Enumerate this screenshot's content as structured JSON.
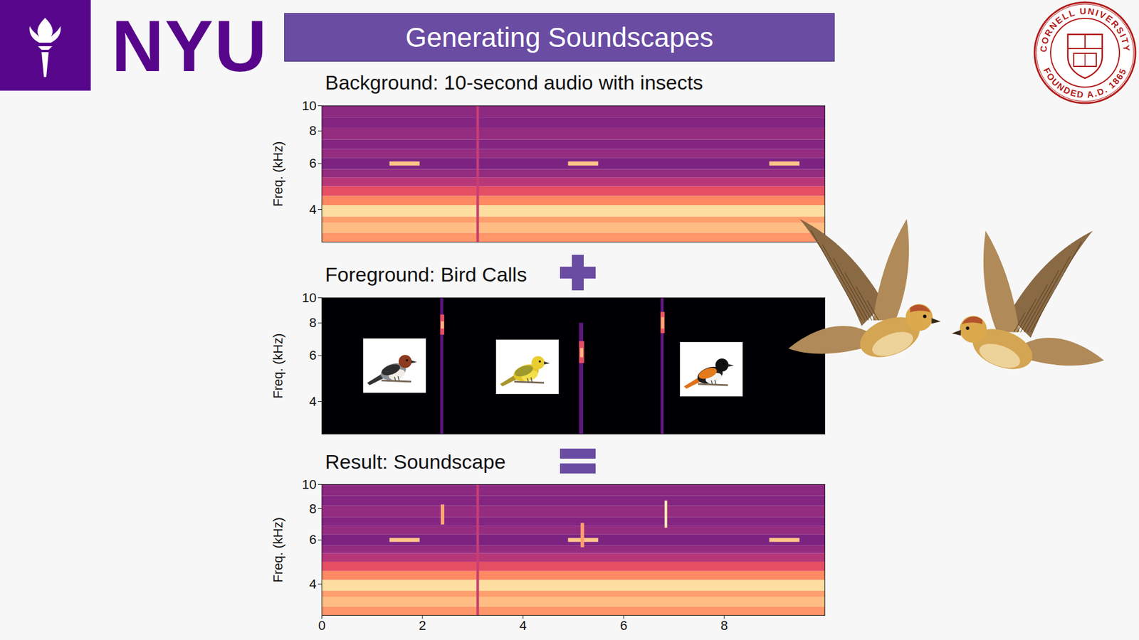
{
  "slide": {
    "title": "Generating Soundscapes",
    "logo_text": "NYU",
    "seal_text": [
      "CORNELL UNIVERSITY",
      "FOUNDED A.D. 1865"
    ]
  },
  "chart_data": [
    {
      "type": "spectrogram",
      "title": "Background: 10-second audio with insects",
      "ylabel": "Freq. (kHz)",
      "xlim": [
        0,
        10
      ],
      "ylim": [
        3,
        10
      ],
      "yticks": [
        4,
        6,
        8,
        10
      ],
      "log": "y",
      "tick_labels": "y",
      "color": "magma",
      "level_range": [
        0,
        1
      ],
      "cells": [
        {
          "t0": 0,
          "t1": 10,
          "f0": 3.0,
          "f1": 3.25,
          "level": 0.78
        },
        {
          "t0": 0,
          "t1": 10,
          "f0": 3.25,
          "f1": 3.55,
          "level": 0.86
        },
        {
          "t0": 0,
          "t1": 10,
          "f0": 3.55,
          "f1": 3.75,
          "level": 0.8
        },
        {
          "t0": 0,
          "t1": 10,
          "f0": 3.75,
          "f1": 4.15,
          "level": 0.93
        },
        {
          "t0": 0,
          "t1": 10,
          "f0": 4.15,
          "f1": 4.5,
          "level": 0.75
        },
        {
          "t0": 0,
          "t1": 10,
          "f0": 4.5,
          "f1": 4.9,
          "level": 0.62
        },
        {
          "t0": 0,
          "t1": 10,
          "f0": 4.9,
          "f1": 5.3,
          "level": 0.5
        },
        {
          "t0": 0,
          "t1": 10,
          "f0": 5.3,
          "f1": 5.7,
          "level": 0.42
        },
        {
          "t0": 0,
          "t1": 10,
          "f0": 5.7,
          "f1": 6.3,
          "level": 0.36
        },
        {
          "t0": 0,
          "t1": 10,
          "f0": 6.3,
          "f1": 6.8,
          "level": 0.42
        },
        {
          "t0": 0,
          "t1": 10,
          "f0": 6.8,
          "f1": 7.4,
          "level": 0.38
        },
        {
          "t0": 0,
          "t1": 10,
          "f0": 7.4,
          "f1": 8.2,
          "level": 0.42
        },
        {
          "t0": 0,
          "t1": 10,
          "f0": 8.2,
          "f1": 9.0,
          "level": 0.38
        },
        {
          "t0": 0,
          "t1": 10,
          "f0": 9.0,
          "f1": 10,
          "level": 0.4
        },
        {
          "t0": 3.08,
          "t1": 3.13,
          "f0": 3,
          "f1": 10,
          "level": 0.55
        },
        {
          "t0": 1.35,
          "t1": 1.95,
          "f0": 5.88,
          "f1": 6.1,
          "level": 0.88
        },
        {
          "t0": 4.9,
          "t1": 5.5,
          "f0": 5.88,
          "f1": 6.1,
          "level": 0.88
        },
        {
          "t0": 8.9,
          "t1": 9.5,
          "f0": 5.88,
          "f1": 6.1,
          "level": 0.88
        }
      ]
    },
    {
      "type": "spectrogram",
      "title": "Foreground: Bird Calls",
      "ylabel": "Freq. (kHz)",
      "xlim": [
        0,
        10
      ],
      "ylim": [
        3,
        10
      ],
      "yticks": [
        4,
        6,
        8,
        10
      ],
      "log": "y",
      "tick_labels": "y",
      "color": "magma",
      "level_range": [
        0,
        1
      ],
      "cells": [
        {
          "t0": 0,
          "t1": 10,
          "f0": 3,
          "f1": 10,
          "level": 0
        },
        {
          "t0": 2.36,
          "t1": 2.42,
          "f0": 3,
          "f1": 10,
          "level": 0.28
        },
        {
          "t0": 2.36,
          "t1": 2.44,
          "f0": 7.2,
          "f1": 8.6,
          "level": 0.62
        },
        {
          "t0": 2.37,
          "t1": 2.43,
          "f0": 7.6,
          "f1": 8.1,
          "level": 0.85
        },
        {
          "t0": 5.12,
          "t1": 5.2,
          "f0": 3,
          "f1": 8,
          "level": 0.28
        },
        {
          "t0": 5.12,
          "t1": 5.22,
          "f0": 5.6,
          "f1": 6.8,
          "level": 0.62
        },
        {
          "t0": 5.14,
          "t1": 5.2,
          "f0": 5.9,
          "f1": 6.4,
          "level": 0.85
        },
        {
          "t0": 6.74,
          "t1": 6.8,
          "f0": 3,
          "f1": 10,
          "level": 0.3
        },
        {
          "t0": 6.74,
          "t1": 6.82,
          "f0": 7.3,
          "f1": 8.8,
          "level": 0.65
        },
        {
          "t0": 6.75,
          "t1": 6.81,
          "f0": 7.6,
          "f1": 8.4,
          "level": 0.82
        }
      ]
    },
    {
      "type": "spectrogram",
      "title": "Result: Soundscape",
      "ylabel": "Freq. (kHz)",
      "xlim": [
        0,
        10
      ],
      "ylim": [
        3,
        10
      ],
      "yticks": [
        4,
        6,
        8,
        10
      ],
      "xticks": [
        0,
        2,
        4,
        6,
        8
      ],
      "log": "y",
      "color": "magma",
      "level_range": [
        0,
        1
      ],
      "cells": [
        {
          "t0": 0,
          "t1": 10,
          "f0": 3.0,
          "f1": 3.25,
          "level": 0.78
        },
        {
          "t0": 0,
          "t1": 10,
          "f0": 3.25,
          "f1": 3.55,
          "level": 0.86
        },
        {
          "t0": 0,
          "t1": 10,
          "f0": 3.55,
          "f1": 3.75,
          "level": 0.8
        },
        {
          "t0": 0,
          "t1": 10,
          "f0": 3.75,
          "f1": 4.15,
          "level": 0.93
        },
        {
          "t0": 0,
          "t1": 10,
          "f0": 4.15,
          "f1": 4.5,
          "level": 0.75
        },
        {
          "t0": 0,
          "t1": 10,
          "f0": 4.5,
          "f1": 4.9,
          "level": 0.62
        },
        {
          "t0": 0,
          "t1": 10,
          "f0": 4.9,
          "f1": 5.3,
          "level": 0.5
        },
        {
          "t0": 0,
          "t1": 10,
          "f0": 5.3,
          "f1": 5.7,
          "level": 0.42
        },
        {
          "t0": 0,
          "t1": 10,
          "f0": 5.7,
          "f1": 6.3,
          "level": 0.36
        },
        {
          "t0": 0,
          "t1": 10,
          "f0": 6.3,
          "f1": 6.8,
          "level": 0.42
        },
        {
          "t0": 0,
          "t1": 10,
          "f0": 6.8,
          "f1": 7.4,
          "level": 0.38
        },
        {
          "t0": 0,
          "t1": 10,
          "f0": 7.4,
          "f1": 8.2,
          "level": 0.42
        },
        {
          "t0": 0,
          "t1": 10,
          "f0": 8.2,
          "f1": 9.0,
          "level": 0.38
        },
        {
          "t0": 0,
          "t1": 10,
          "f0": 9.0,
          "f1": 10,
          "level": 0.4
        },
        {
          "t0": 3.08,
          "t1": 3.13,
          "f0": 3,
          "f1": 10,
          "level": 0.55
        },
        {
          "t0": 1.35,
          "t1": 1.95,
          "f0": 5.88,
          "f1": 6.1,
          "level": 0.88
        },
        {
          "t0": 4.9,
          "t1": 5.5,
          "f0": 5.88,
          "f1": 6.1,
          "level": 0.88
        },
        {
          "t0": 8.9,
          "t1": 9.5,
          "f0": 5.88,
          "f1": 6.1,
          "level": 0.88
        },
        {
          "t0": 2.37,
          "t1": 2.44,
          "f0": 6.9,
          "f1": 8.3,
          "level": 0.82
        },
        {
          "t0": 5.15,
          "t1": 5.22,
          "f0": 5.6,
          "f1": 7.0,
          "level": 0.8
        },
        {
          "t0": 6.82,
          "t1": 6.87,
          "f0": 6.7,
          "f1": 8.6,
          "level": 0.97
        }
      ]
    }
  ]
}
